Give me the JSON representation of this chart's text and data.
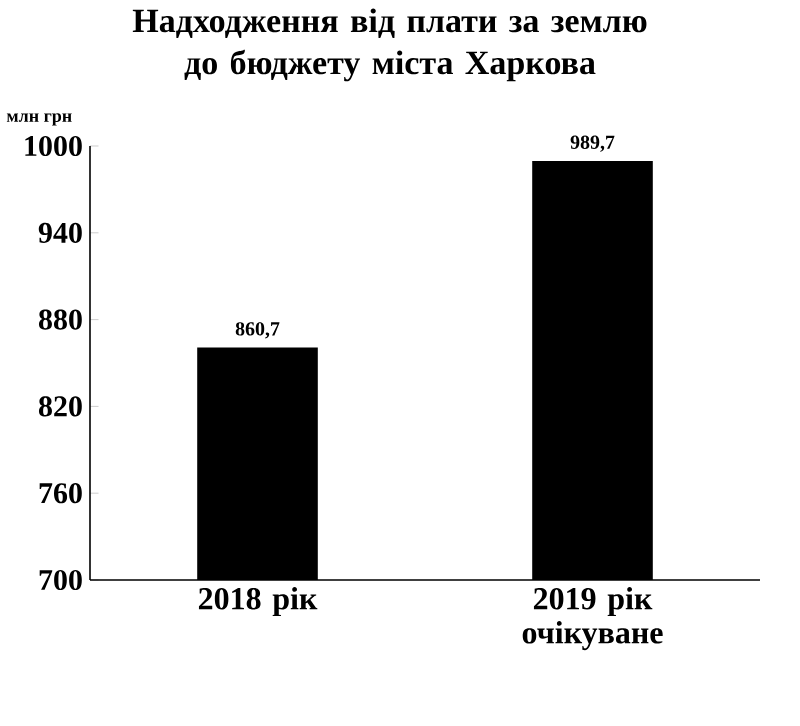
{
  "chart_data": {
    "type": "bar",
    "title": "Надходження від плати за землю до бюджету міста Харкова",
    "ylabel": "млн грн",
    "categories": [
      "2018 рік",
      "2019 рік очікуване"
    ],
    "values": [
      860.7,
      989.7
    ],
    "value_labels": [
      "860,7",
      "989,7"
    ],
    "color": "#000000",
    "ylim": [
      700,
      1000
    ],
    "yticks": [
      700,
      760,
      820,
      880,
      940,
      1000
    ],
    "grid": false
  }
}
